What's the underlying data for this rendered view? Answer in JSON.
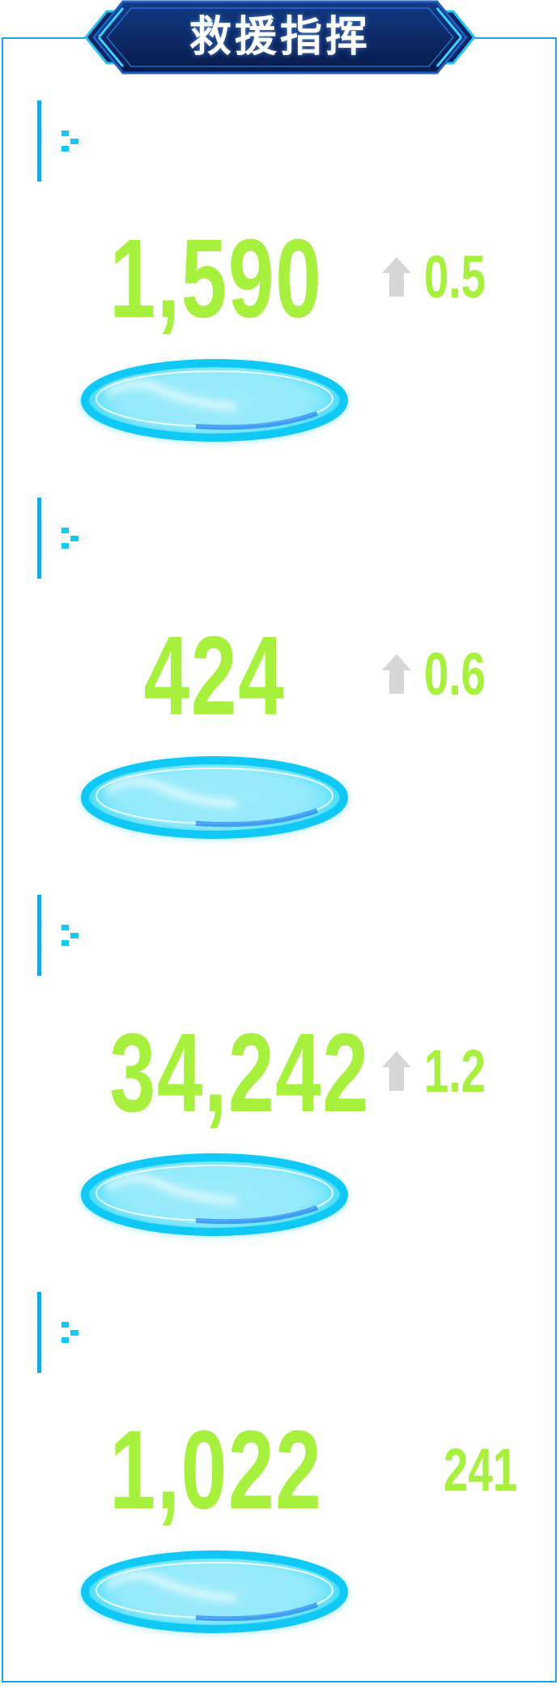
{
  "header": {
    "title": "救援指挥"
  },
  "sections": [
    {
      "label": "",
      "value": "1,590",
      "trend": {
        "direction": "up",
        "value": "0.5"
      }
    },
    {
      "label": "",
      "value": "424",
      "trend": {
        "direction": "up",
        "value": "0.6"
      }
    },
    {
      "label": "",
      "value": "34,242",
      "trend": {
        "direction": "up",
        "value": "1.2"
      }
    },
    {
      "label": "",
      "value": "1,022",
      "extra_value": "241"
    }
  ],
  "colors": {
    "accent_blue": "#1aa7e6",
    "marker_cyan": "#17c9f2",
    "value_green": "#a8f03e",
    "arrow_gray": "#d6d6d6",
    "header_navy": "#0c2560"
  },
  "icons": {
    "trend": "arrow-up-icon",
    "marker": "label-marker-icon"
  }
}
